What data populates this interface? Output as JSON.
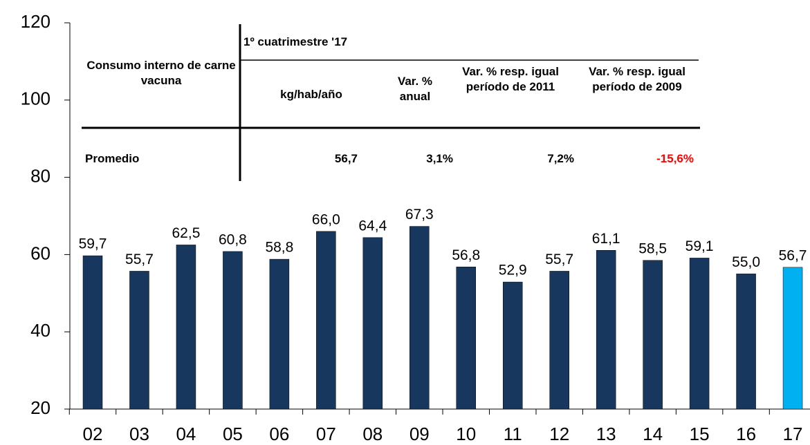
{
  "chart_data": {
    "type": "bar",
    "categories": [
      "02",
      "03",
      "04",
      "05",
      "06",
      "07",
      "08",
      "09",
      "10",
      "11",
      "12",
      "13",
      "14",
      "15",
      "16",
      "17"
    ],
    "values": [
      59.7,
      55.7,
      62.5,
      60.8,
      58.8,
      66.0,
      64.4,
      67.3,
      56.8,
      52.9,
      55.7,
      61.1,
      58.5,
      59.1,
      55.0,
      56.7
    ],
    "value_labels": [
      "59,7",
      "55,7",
      "62,5",
      "60,8",
      "58,8",
      "66,0",
      "64,4",
      "67,3",
      "56,8",
      "52,9",
      "55,7",
      "61,1",
      "58,5",
      "59,1",
      "55,0",
      "56,7"
    ],
    "colors": [
      "#17375e",
      "#17375e",
      "#17375e",
      "#17375e",
      "#17375e",
      "#17375e",
      "#17375e",
      "#17375e",
      "#17375e",
      "#17375e",
      "#17375e",
      "#17375e",
      "#17375e",
      "#17375e",
      "#17375e",
      "#00b0f0"
    ],
    "ylim": [
      20,
      120
    ],
    "yticks": [
      20,
      40,
      60,
      80,
      100,
      120
    ],
    "table": {
      "row_header": "Consumo interno de carne vacuna",
      "period": "1º cuatrimestre '17",
      "columns": [
        "kg/hab/año",
        "Var. % anual",
        "Var. % resp. igual período de 2011",
        "Var. % resp. igual período de 2009"
      ],
      "row_label": "Promedio",
      "row": [
        "56,7",
        "3,1%",
        "7,2%",
        "-15,6%"
      ]
    }
  }
}
